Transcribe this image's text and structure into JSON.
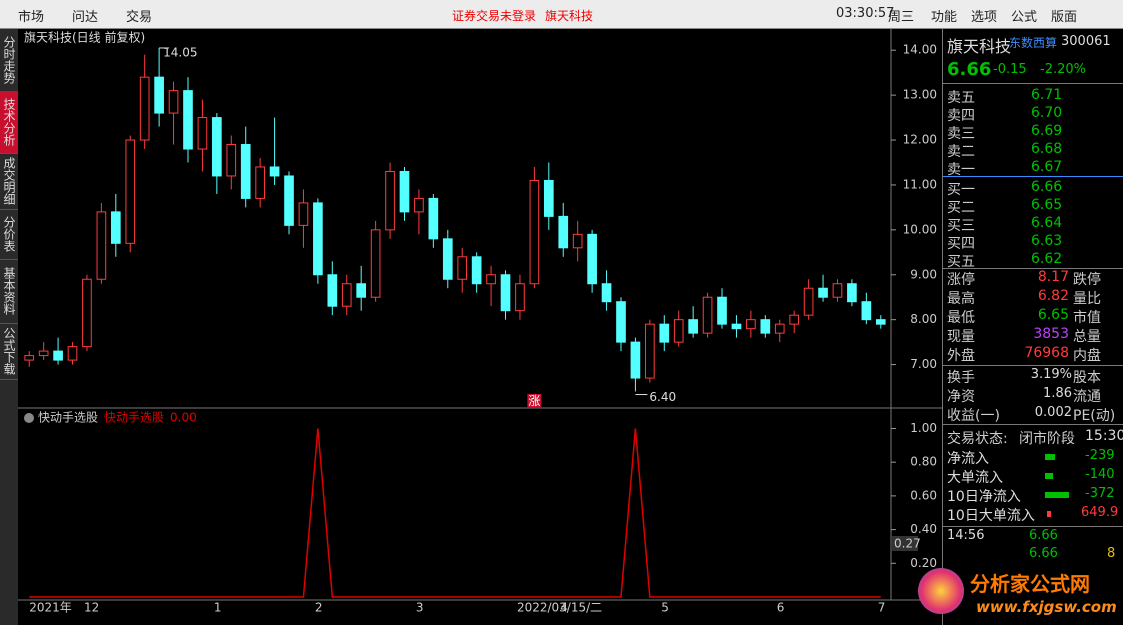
{
  "menu": {
    "left": [
      "市场",
      "问达",
      "交易"
    ],
    "notice": "证券交易未登录",
    "stock": "旗天科技",
    "clock": "03:30:57",
    "weekday": "周三",
    "right": [
      "功能",
      "选项",
      "公式",
      "版面"
    ]
  },
  "tabs": [
    "分时走势",
    "技术分析",
    "成交明细",
    "分价表",
    "基本资料",
    "公式下载"
  ],
  "quote": {
    "name": "旗天科技",
    "concept": "东数西算",
    "code": "300061",
    "price": "6.66",
    "change": "-0.15",
    "change_pct": "-2.20%",
    "book": [
      [
        "卖五",
        "6.71"
      ],
      [
        "卖四",
        "6.70"
      ],
      [
        "卖三",
        "6.69"
      ],
      [
        "卖二",
        "6.68"
      ],
      [
        "卖一",
        "6.67"
      ],
      [
        "买一",
        "6.66"
      ],
      [
        "买二",
        "6.65"
      ],
      [
        "买三",
        "6.64"
      ],
      [
        "买四",
        "6.63"
      ],
      [
        "买五",
        "6.62"
      ]
    ],
    "stats": [
      [
        "涨停",
        "8.17",
        "跌停"
      ],
      [
        "最高",
        "6.82",
        "量比"
      ],
      [
        "最低",
        "6.65",
        "市值"
      ],
      [
        "现量",
        "3853",
        "总量"
      ],
      [
        "外盘",
        "76968",
        "内盘"
      ]
    ],
    "stats2": [
      [
        "换手",
        "3.19%",
        "股本"
      ],
      [
        "净资",
        "1.86",
        "流通"
      ],
      [
        "收益(一)",
        "0.002",
        "PE(动)"
      ]
    ],
    "status": [
      "交易状态:",
      "闭市阶段",
      "15:30"
    ],
    "flows": [
      [
        "净流入",
        "-239"
      ],
      [
        "大单流入",
        "-140"
      ],
      [
        "10日净流入",
        "-372"
      ],
      [
        "10日大单流入",
        "649.9"
      ]
    ],
    "ticks": [
      [
        "14:56",
        "6.66"
      ],
      [
        "6.66",
        "8"
      ]
    ]
  },
  "watermark": {
    "name": "分析家公式网",
    "url": "www.fxjgsw.com"
  },
  "chart_data": [
    {
      "type": "candlestick",
      "title": "旗天科技(日线 前复权)",
      "up_color": "#ff3c3c",
      "down_color": "#54ffff",
      "categories": [
        "2021年",
        null,
        null,
        null,
        "12",
        null,
        null,
        null,
        null,
        null,
        null,
        null,
        null,
        "1",
        null,
        null,
        null,
        null,
        null,
        null,
        "2",
        null,
        null,
        null,
        null,
        null,
        null,
        "3",
        null,
        null,
        null,
        null,
        null,
        null,
        "2022/03/15/二",
        null,
        null,
        "4",
        null,
        null,
        null,
        null,
        null,
        null,
        "5",
        null,
        null,
        null,
        null,
        null,
        null,
        null,
        "6",
        null,
        null,
        null,
        null,
        null,
        null,
        "7"
      ],
      "open": [
        7.1,
        7.2,
        7.3,
        7.1,
        7.4,
        8.9,
        10.4,
        9.7,
        12.0,
        13.4,
        12.6,
        13.1,
        11.8,
        12.5,
        11.2,
        11.9,
        10.7,
        11.4,
        11.2,
        10.1,
        10.6,
        9.0,
        8.3,
        8.8,
        8.5,
        10.0,
        11.3,
        10.4,
        10.7,
        9.8,
        8.9,
        9.4,
        8.8,
        9.0,
        8.2,
        8.8,
        11.1,
        10.3,
        9.6,
        9.9,
        8.8,
        8.4,
        7.5,
        6.7,
        7.9,
        7.5,
        8.0,
        7.7,
        8.5,
        7.9,
        7.8,
        8.0,
        7.7,
        7.9,
        8.1,
        8.7,
        8.5,
        8.8,
        8.4,
        8.0
      ],
      "high": [
        7.3,
        7.5,
        7.6,
        7.5,
        9.0,
        10.6,
        10.8,
        12.1,
        13.9,
        14.05,
        13.3,
        13.4,
        12.9,
        12.6,
        12.1,
        12.3,
        11.6,
        12.5,
        11.3,
        10.9,
        10.7,
        9.3,
        9.0,
        9.2,
        10.2,
        11.5,
        11.4,
        10.9,
        10.8,
        10.0,
        9.6,
        9.5,
        9.2,
        9.1,
        9.0,
        11.4,
        11.5,
        10.6,
        10.2,
        10.0,
        9.1,
        8.5,
        7.6,
        8.0,
        8.1,
        8.2,
        8.3,
        8.6,
        8.7,
        8.1,
        8.2,
        8.1,
        8.0,
        8.2,
        8.9,
        9.0,
        8.9,
        8.9,
        8.6,
        8.1
      ],
      "low": [
        6.95,
        7.1,
        7.0,
        7.0,
        7.3,
        8.8,
        9.4,
        9.5,
        11.8,
        12.3,
        11.9,
        11.5,
        11.3,
        10.8,
        10.9,
        10.5,
        10.5,
        11.0,
        9.9,
        9.6,
        8.8,
        8.1,
        8.1,
        8.2,
        8.4,
        9.8,
        10.2,
        9.9,
        9.6,
        8.7,
        8.6,
        8.6,
        8.3,
        8.0,
        8.0,
        8.7,
        10.0,
        9.4,
        9.3,
        8.6,
        8.2,
        7.3,
        6.4,
        6.6,
        7.3,
        7.4,
        7.6,
        7.6,
        7.8,
        7.6,
        7.6,
        7.6,
        7.5,
        7.7,
        8.0,
        8.4,
        8.4,
        8.3,
        7.9,
        7.8
      ],
      "close": [
        7.2,
        7.3,
        7.1,
        7.4,
        8.9,
        10.4,
        9.7,
        12.0,
        13.4,
        12.6,
        13.1,
        11.8,
        12.5,
        11.2,
        11.9,
        10.7,
        11.4,
        11.2,
        10.1,
        10.6,
        9.0,
        8.3,
        8.8,
        8.5,
        10.0,
        11.3,
        10.4,
        10.7,
        9.8,
        8.9,
        9.4,
        8.8,
        9.0,
        8.2,
        8.8,
        11.1,
        10.3,
        9.6,
        9.9,
        8.8,
        8.4,
        7.5,
        6.7,
        7.9,
        7.5,
        8.0,
        7.7,
        8.5,
        7.9,
        7.8,
        8.0,
        7.7,
        7.9,
        8.1,
        8.7,
        8.5,
        8.8,
        8.4,
        8.0,
        7.9
      ],
      "ylim": [
        6.1,
        14.45
      ],
      "yticks": [
        {
          "value": 7,
          "label": "7.00"
        },
        {
          "value": 8,
          "label": "8.00"
        },
        {
          "value": 9,
          "label": "9.00"
        },
        {
          "value": 10,
          "label": "10.00"
        },
        {
          "value": 11,
          "label": "11.00"
        },
        {
          "value": 12,
          "label": "12.00"
        },
        {
          "value": 13,
          "label": "13.00"
        },
        {
          "value": 14,
          "label": "14.00"
        }
      ],
      "max_label": "14.05",
      "min_label": "6.40",
      "markers": [
        {
          "label": "涨",
          "index": 35
        }
      ]
    },
    {
      "type": "line",
      "title": "快动手选股",
      "current_label": "0.00",
      "cursor_label": "0.27",
      "series": [
        {
          "name": "快动手选股",
          "color": "#e00000",
          "values": [
            0,
            0,
            0,
            0,
            0,
            0,
            0,
            0,
            0,
            0,
            0,
            0,
            0,
            0,
            0,
            0,
            0,
            0,
            0,
            0,
            1,
            0,
            0,
            0,
            0,
            0,
            0,
            0,
            0,
            0,
            0,
            0,
            0,
            0,
            0,
            0,
            0,
            0,
            0,
            0,
            0,
            0,
            1,
            0,
            0,
            0,
            0,
            0,
            0,
            0,
            0,
            0,
            0,
            0,
            0,
            0,
            0,
            0,
            0,
            0
          ]
        }
      ],
      "ylim": [
        0,
        1.08
      ],
      "yticks": [
        {
          "value": 0.2,
          "label": "0.20"
        },
        {
          "value": 0.4,
          "label": "0.40"
        },
        {
          "value": 0.6,
          "label": "0.60"
        },
        {
          "value": 0.8,
          "label": "0.80"
        },
        {
          "value": 1,
          "label": "1.00"
        }
      ]
    }
  ]
}
